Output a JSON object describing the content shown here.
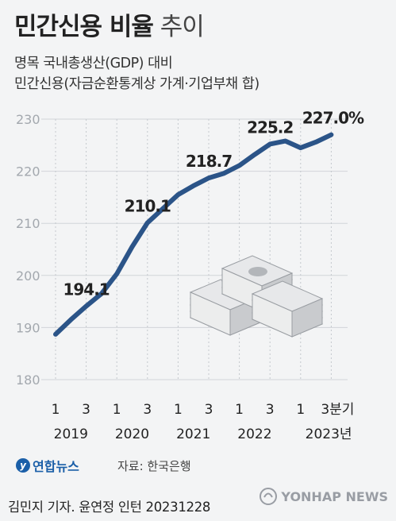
{
  "title": {
    "bold": "민간신용 비율",
    "light": "추이"
  },
  "subtitle_lines": [
    "명목 국내총생산(GDP) 대비",
    "민간신용(자금순환통계상 가계·기업부채 합)"
  ],
  "chart_data": {
    "type": "line",
    "ylim": [
      180,
      230
    ],
    "yticks": [
      "180",
      "190",
      "200",
      "210",
      "220",
      "230"
    ],
    "x": [
      "2019Q1",
      "2019Q2",
      "2019Q3",
      "2019Q4",
      "2020Q1",
      "2020Q2",
      "2020Q3",
      "2020Q4",
      "2021Q1",
      "2021Q2",
      "2021Q3",
      "2021Q4",
      "2022Q1",
      "2022Q2",
      "2022Q3",
      "2022Q4",
      "2023Q1",
      "2023Q2",
      "2023Q3"
    ],
    "values": [
      188.7,
      191.5,
      194.1,
      196.5,
      200.3,
      205.5,
      210.1,
      212.8,
      215.5,
      217.2,
      218.7,
      219.6,
      221.1,
      223.2,
      225.2,
      225.8,
      224.5,
      225.6,
      227.0
    ],
    "xtick_quarters": [
      "1",
      "3",
      "1",
      "3",
      "1",
      "3",
      "1",
      "3",
      "1",
      "3분기"
    ],
    "xtick_years": [
      "2019",
      "2020",
      "2021",
      "2022",
      "2023년"
    ],
    "labels": [
      {
        "index": 2,
        "text": "194.1"
      },
      {
        "index": 6,
        "text": "210.1"
      },
      {
        "index": 10,
        "text": "218.7"
      },
      {
        "index": 14,
        "text": "225.2"
      },
      {
        "index": 18,
        "text": "227.0%"
      }
    ],
    "line_color": "#2b5488",
    "grid": true
  },
  "footer": {
    "logo_text": "연합뉴스",
    "source": "자료: 한국은행",
    "credit": "김민지 기자. 윤연정 인턴  20231228",
    "watermark": "YONHAP NEWS"
  }
}
